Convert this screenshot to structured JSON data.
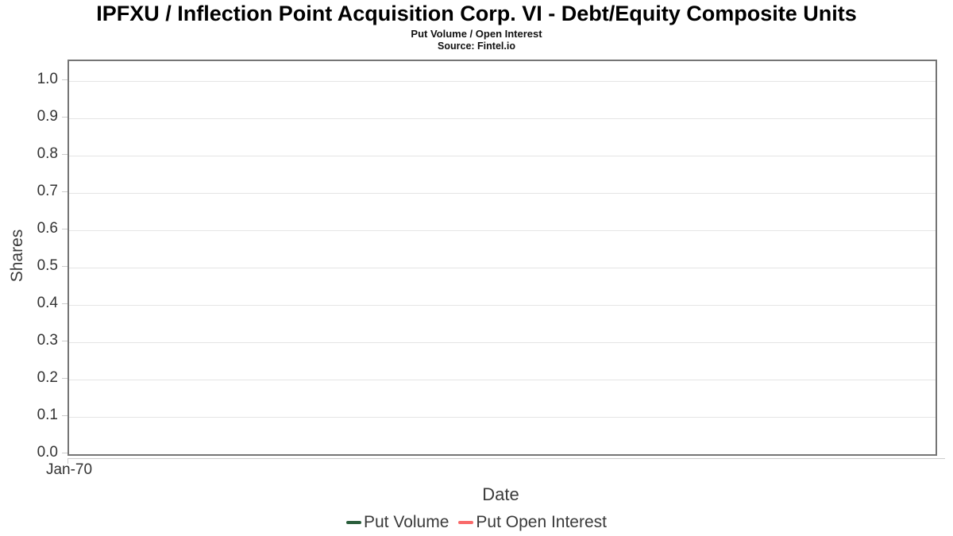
{
  "chart": {
    "title": "IPFXU / Inflection Point Acquisition Corp. VI - Debt/Equity Composite Units",
    "subtitle": "Put Volume / Open Interest",
    "source": "Source: Fintel.io"
  },
  "chart_data": {
    "type": "line",
    "title": "IPFXU / Inflection Point Acquisition Corp. VI - Debt/Equity Composite Units",
    "subtitle": "Put Volume / Open Interest",
    "source": "Source: Fintel.io",
    "xlabel": "Date",
    "ylabel": "Shares",
    "ylim": [
      0.0,
      1.0
    ],
    "y_ticks": [
      "1.0",
      "0.9",
      "0.8",
      "0.7",
      "0.6",
      "0.5",
      "0.4",
      "0.3",
      "0.2",
      "0.1",
      "0.0"
    ],
    "x_ticks": [
      "Jan-70"
    ],
    "grid": "horizontal",
    "gridline_color": "#e5e5e5",
    "plot_border_color": "#757575",
    "legend_position": "bottom",
    "series": [
      {
        "name": "Put Volume",
        "color": "#2a5e3c",
        "values": []
      },
      {
        "name": "Put Open Interest",
        "color": "#f96a6a",
        "values": []
      }
    ]
  }
}
